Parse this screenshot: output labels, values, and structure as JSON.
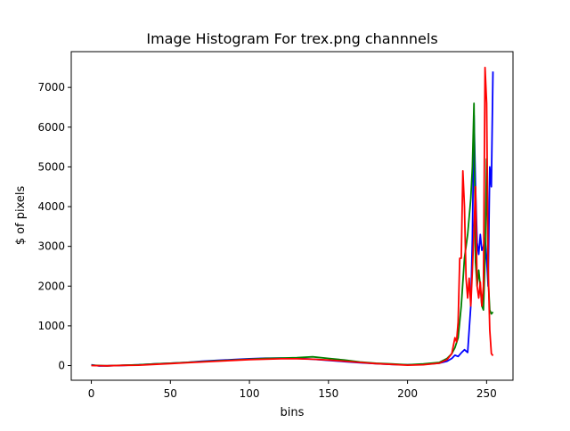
{
  "chart_data": {
    "type": "line",
    "title": "Image Histogram For trex.png channnels",
    "xlabel": "bins",
    "ylabel": "$ of pixels",
    "xlim": [
      -12.7,
      266.7
    ],
    "ylim": [
      -369,
      7900
    ],
    "xticks": [
      0,
      50,
      100,
      150,
      200,
      250
    ],
    "yticks": [
      0,
      1000,
      2000,
      3000,
      4000,
      5000,
      6000,
      7000
    ],
    "grid": false,
    "legend": "none",
    "series": [
      {
        "color": "#0000ff",
        "points": [
          [
            0,
            20
          ],
          [
            5,
            -10
          ],
          [
            10,
            -5
          ],
          [
            20,
            5
          ],
          [
            30,
            20
          ],
          [
            40,
            40
          ],
          [
            50,
            60
          ],
          [
            60,
            80
          ],
          [
            70,
            110
          ],
          [
            80,
            130
          ],
          [
            90,
            150
          ],
          [
            100,
            170
          ],
          [
            110,
            185
          ],
          [
            120,
            190
          ],
          [
            130,
            180
          ],
          [
            140,
            160
          ],
          [
            150,
            130
          ],
          [
            160,
            100
          ],
          [
            170,
            70
          ],
          [
            180,
            50
          ],
          [
            190,
            30
          ],
          [
            200,
            20
          ],
          [
            210,
            30
          ],
          [
            220,
            60
          ],
          [
            225,
            110
          ],
          [
            228,
            180
          ],
          [
            230,
            260
          ],
          [
            232,
            230
          ],
          [
            234,
            320
          ],
          [
            236,
            400
          ],
          [
            238,
            330
          ],
          [
            240,
            1500
          ],
          [
            241,
            3200
          ],
          [
            242,
            6300
          ],
          [
            243,
            4500
          ],
          [
            244,
            3100
          ],
          [
            245,
            2800
          ],
          [
            246,
            3300
          ],
          [
            247,
            2900
          ],
          [
            248,
            3000
          ],
          [
            249,
            3200
          ],
          [
            250,
            2700
          ],
          [
            251,
            2000
          ],
          [
            252,
            5000
          ],
          [
            253,
            4500
          ],
          [
            254,
            7400
          ]
        ]
      },
      {
        "color": "#008000",
        "points": [
          [
            0,
            10
          ],
          [
            10,
            -5
          ],
          [
            20,
            10
          ],
          [
            30,
            20
          ],
          [
            40,
            40
          ],
          [
            50,
            60
          ],
          [
            60,
            80
          ],
          [
            70,
            100
          ],
          [
            80,
            120
          ],
          [
            90,
            140
          ],
          [
            100,
            160
          ],
          [
            110,
            180
          ],
          [
            120,
            190
          ],
          [
            130,
            200
          ],
          [
            140,
            220
          ],
          [
            150,
            180
          ],
          [
            160,
            140
          ],
          [
            170,
            90
          ],
          [
            180,
            60
          ],
          [
            190,
            40
          ],
          [
            200,
            20
          ],
          [
            210,
            40
          ],
          [
            220,
            80
          ],
          [
            225,
            180
          ],
          [
            228,
            300
          ],
          [
            230,
            450
          ],
          [
            232,
            700
          ],
          [
            234,
            1500
          ],
          [
            236,
            2700
          ],
          [
            238,
            3300
          ],
          [
            240,
            4200
          ],
          [
            241,
            5000
          ],
          [
            242,
            6600
          ],
          [
            243,
            2600
          ],
          [
            244,
            2000
          ],
          [
            245,
            2400
          ],
          [
            246,
            2000
          ],
          [
            247,
            1500
          ],
          [
            248,
            1400
          ],
          [
            249,
            2700
          ],
          [
            250,
            5200
          ],
          [
            251,
            2200
          ],
          [
            252,
            1400
          ],
          [
            253,
            1300
          ],
          [
            254,
            1350
          ]
        ]
      },
      {
        "color": "#ff0000",
        "points": [
          [
            0,
            0
          ],
          [
            10,
            -5
          ],
          [
            20,
            5
          ],
          [
            30,
            10
          ],
          [
            40,
            30
          ],
          [
            50,
            50
          ],
          [
            60,
            70
          ],
          [
            70,
            90
          ],
          [
            80,
            110
          ],
          [
            90,
            130
          ],
          [
            100,
            150
          ],
          [
            110,
            160
          ],
          [
            120,
            170
          ],
          [
            130,
            170
          ],
          [
            140,
            160
          ],
          [
            150,
            140
          ],
          [
            160,
            110
          ],
          [
            170,
            80
          ],
          [
            180,
            50
          ],
          [
            190,
            30
          ],
          [
            200,
            10
          ],
          [
            210,
            20
          ],
          [
            220,
            60
          ],
          [
            225,
            150
          ],
          [
            228,
            300
          ],
          [
            230,
            700
          ],
          [
            231,
            600
          ],
          [
            232,
            1100
          ],
          [
            233,
            2700
          ],
          [
            234,
            2700
          ],
          [
            235,
            4900
          ],
          [
            236,
            4000
          ],
          [
            237,
            2200
          ],
          [
            238,
            1700
          ],
          [
            239,
            2200
          ],
          [
            240,
            1500
          ],
          [
            241,
            2400
          ],
          [
            242,
            3400
          ],
          [
            243,
            4500
          ],
          [
            244,
            2000
          ],
          [
            245,
            1700
          ],
          [
            246,
            2100
          ],
          [
            247,
            1500
          ],
          [
            248,
            2000
          ],
          [
            249,
            7500
          ],
          [
            250,
            6600
          ],
          [
            251,
            2500
          ],
          [
            252,
            900
          ],
          [
            253,
            300
          ],
          [
            254,
            250
          ]
        ]
      }
    ]
  }
}
